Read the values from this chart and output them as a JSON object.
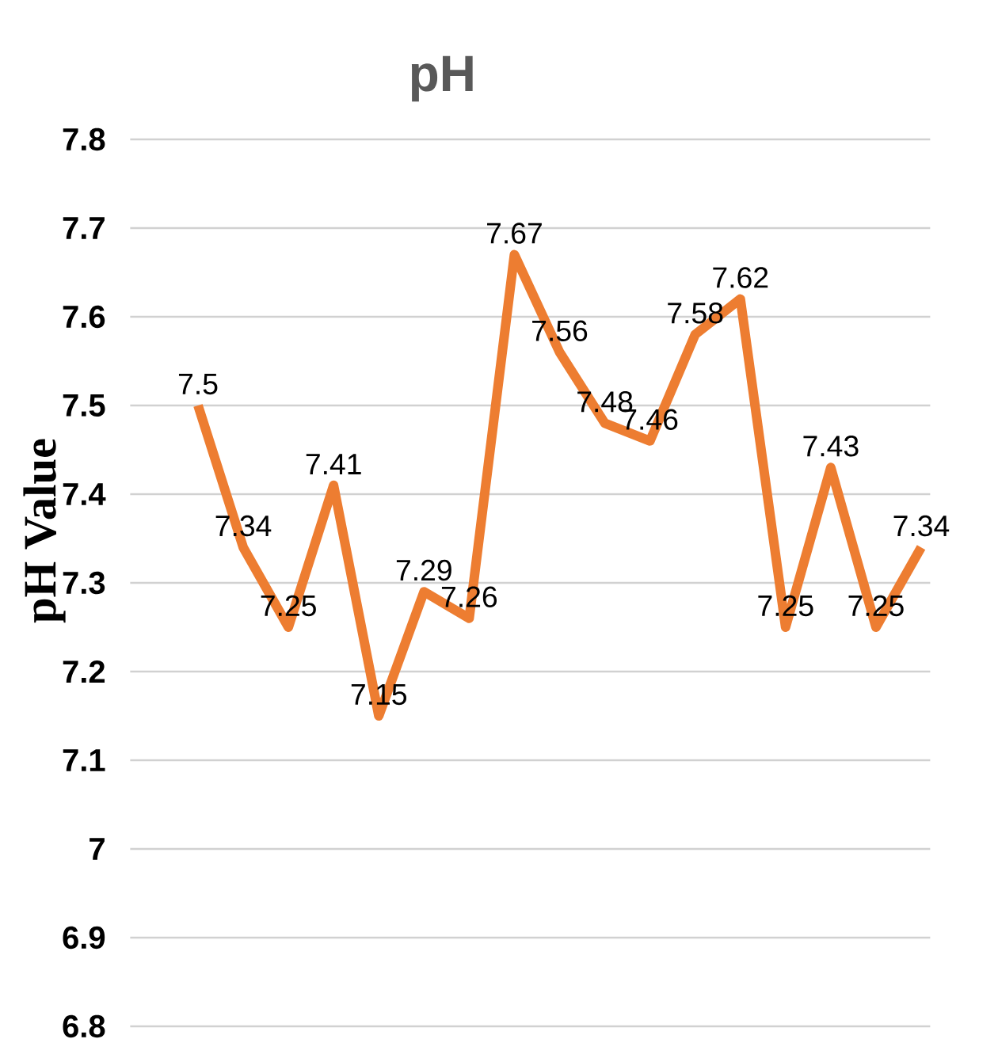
{
  "chart_data": {
    "type": "line",
    "title": "pH",
    "ylabel": "pH Value",
    "categories": [
      null,
      null,
      null,
      null,
      null,
      null,
      null,
      null,
      null,
      null,
      null,
      null,
      null,
      null,
      null,
      null,
      null
    ],
    "values": [
      7.5,
      7.34,
      7.25,
      7.41,
      7.15,
      7.29,
      7.26,
      7.67,
      7.56,
      7.48,
      7.46,
      7.58,
      7.62,
      7.25,
      7.43,
      7.25,
      7.34
    ],
    "color": "#ed7d31",
    "ylim": [
      6.8,
      7.8
    ],
    "yticks": [
      6.8,
      6.9,
      7,
      7.1,
      7.2,
      7.3,
      7.4,
      7.5,
      7.6,
      7.7,
      7.8
    ],
    "grid": "y",
    "data_labels": true,
    "tick_labels": "y",
    "marker": "none",
    "line_style": "solid",
    "legend": false
  }
}
